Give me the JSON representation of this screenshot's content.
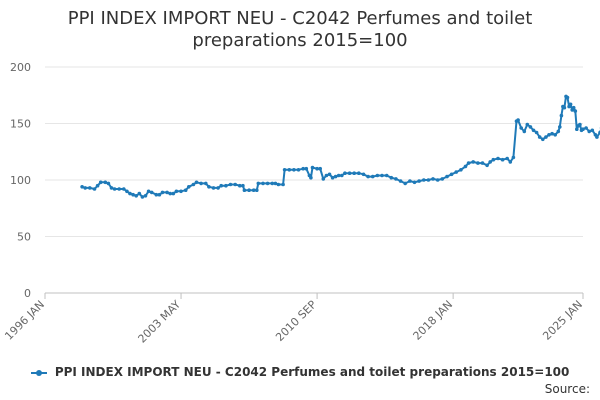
{
  "chart_data": {
    "type": "line",
    "title_lines": [
      "PPI INDEX IMPORT NEU - C2042 Perfumes and toilet",
      "preparations 2015=100"
    ],
    "xlabel": "",
    "ylabel": "",
    "ylim": [
      0,
      200
    ],
    "yticks": [
      0,
      50,
      100,
      150,
      200
    ],
    "xlim": [
      "1996-01",
      "2025-01"
    ],
    "xticks": [
      "1996 JAN",
      "2003 MAY",
      "2010 SEP",
      "2018 JAN",
      "2025 JAN"
    ],
    "grid": "horizontal",
    "legend_position": "bottom",
    "color": "#1f7ab8",
    "series": [
      {
        "name": "PPI INDEX IMPORT NEU - C2042 Perfumes and toilet preparations 2015=100",
        "points": [
          [
            "1998-01",
            94
          ],
          [
            "1998-03",
            93
          ],
          [
            "1998-06",
            93
          ],
          [
            "1998-09",
            92
          ],
          [
            "1998-11",
            95
          ],
          [
            "1999-01",
            98
          ],
          [
            "1999-04",
            98
          ],
          [
            "1999-06",
            97
          ],
          [
            "1999-08",
            93
          ],
          [
            "1999-10",
            92
          ],
          [
            "2000-01",
            92
          ],
          [
            "2000-04",
            92
          ],
          [
            "2000-06",
            90
          ],
          [
            "2000-08",
            88
          ],
          [
            "2000-10",
            87
          ],
          [
            "2000-12",
            86
          ],
          [
            "2001-02",
            88
          ],
          [
            "2001-04",
            85
          ],
          [
            "2001-06",
            86
          ],
          [
            "2001-08",
            90
          ],
          [
            "2001-10",
            89
          ],
          [
            "2002-01",
            87
          ],
          [
            "2002-03",
            87
          ],
          [
            "2002-05",
            89
          ],
          [
            "2002-08",
            89
          ],
          [
            "2002-10",
            88
          ],
          [
            "2002-12",
            88
          ],
          [
            "2003-02",
            90
          ],
          [
            "2003-05",
            90
          ],
          [
            "2003-08",
            91
          ],
          [
            "2003-10",
            94
          ],
          [
            "2004-01",
            96
          ],
          [
            "2004-03",
            98
          ],
          [
            "2004-06",
            97
          ],
          [
            "2004-09",
            97
          ],
          [
            "2004-11",
            94
          ],
          [
            "2005-02",
            93
          ],
          [
            "2005-05",
            93
          ],
          [
            "2005-07",
            95
          ],
          [
            "2005-10",
            95
          ],
          [
            "2006-01",
            96
          ],
          [
            "2006-04",
            96
          ],
          [
            "2006-07",
            95
          ],
          [
            "2006-09",
            95
          ],
          [
            "2006-10",
            91
          ],
          [
            "2007-01",
            91
          ],
          [
            "2007-04",
            91
          ],
          [
            "2007-06",
            91
          ],
          [
            "2007-07",
            97
          ],
          [
            "2007-10",
            97
          ],
          [
            "2008-01",
            97
          ],
          [
            "2008-04",
            97
          ],
          [
            "2008-06",
            97
          ],
          [
            "2008-08",
            96
          ],
          [
            "2008-11",
            96
          ],
          [
            "2008-12",
            109
          ],
          [
            "2009-03",
            109
          ],
          [
            "2009-06",
            109
          ],
          [
            "2009-09",
            109
          ],
          [
            "2009-12",
            110
          ],
          [
            "2010-02",
            110
          ],
          [
            "2010-04",
            104
          ],
          [
            "2010-05",
            102
          ],
          [
            "2010-06",
            111
          ],
          [
            "2010-09",
            110
          ],
          [
            "2010-11",
            110
          ],
          [
            "2011-01",
            101
          ],
          [
            "2011-03",
            104
          ],
          [
            "2011-05",
            105
          ],
          [
            "2011-07",
            102
          ],
          [
            "2011-09",
            103
          ],
          [
            "2011-11",
            104
          ],
          [
            "2012-01",
            104
          ],
          [
            "2012-03",
            106
          ],
          [
            "2012-06",
            106
          ],
          [
            "2012-09",
            106
          ],
          [
            "2012-12",
            106
          ],
          [
            "2013-03",
            105
          ],
          [
            "2013-06",
            103
          ],
          [
            "2013-09",
            103
          ],
          [
            "2013-12",
            104
          ],
          [
            "2014-03",
            104
          ],
          [
            "2014-06",
            104
          ],
          [
            "2014-09",
            102
          ],
          [
            "2014-12",
            101
          ],
          [
            "2015-03",
            99
          ],
          [
            "2015-06",
            97
          ],
          [
            "2015-09",
            99
          ],
          [
            "2015-12",
            98
          ],
          [
            "2016-03",
            99
          ],
          [
            "2016-06",
            100
          ],
          [
            "2016-09",
            100
          ],
          [
            "2016-12",
            101
          ],
          [
            "2017-03",
            100
          ],
          [
            "2017-06",
            101
          ],
          [
            "2017-09",
            103
          ],
          [
            "2017-12",
            105
          ],
          [
            "2018-03",
            107
          ],
          [
            "2018-06",
            109
          ],
          [
            "2018-09",
            112
          ],
          [
            "2018-11",
            115
          ],
          [
            "2019-02",
            116
          ],
          [
            "2019-05",
            115
          ],
          [
            "2019-08",
            115
          ],
          [
            "2019-11",
            113
          ],
          [
            "2020-01",
            116
          ],
          [
            "2020-03",
            118
          ],
          [
            "2020-06",
            119
          ],
          [
            "2020-09",
            118
          ],
          [
            "2020-12",
            119
          ],
          [
            "2021-02",
            116
          ],
          [
            "2021-04",
            120
          ],
          [
            "2021-06",
            152
          ],
          [
            "2021-07",
            153
          ],
          [
            "2021-09",
            146
          ],
          [
            "2021-11",
            143
          ],
          [
            "2022-01",
            149
          ],
          [
            "2022-03",
            147
          ],
          [
            "2022-05",
            144
          ],
          [
            "2022-07",
            142
          ],
          [
            "2022-09",
            138
          ],
          [
            "2022-11",
            136
          ],
          [
            "2023-01",
            138
          ],
          [
            "2023-03",
            140
          ],
          [
            "2023-05",
            141
          ],
          [
            "2023-07",
            140
          ],
          [
            "2023-09",
            143
          ],
          [
            "2023-10",
            147
          ],
          [
            "2023-11",
            157
          ],
          [
            "2023-12",
            165
          ],
          [
            "2024-01",
            164
          ],
          [
            "2024-02",
            174
          ],
          [
            "2024-03",
            173
          ],
          [
            "2024-04",
            165
          ],
          [
            "2024-05",
            167
          ],
          [
            "2024-06",
            162
          ],
          [
            "2024-07",
            164
          ],
          [
            "2024-08",
            161
          ],
          [
            "2024-09",
            145
          ],
          [
            "2024-10",
            148
          ],
          [
            "2024-11",
            149
          ],
          [
            "2024-12",
            144
          ],
          [
            "2025-01",
            145
          ],
          [
            "2025-03",
            146
          ],
          [
            "2025-05",
            143
          ],
          [
            "2025-07",
            144
          ],
          [
            "2025-09",
            140
          ],
          [
            "2025-10",
            138
          ],
          [
            "2025-12",
            142
          ],
          [
            "2026-01",
            146
          ]
        ]
      }
    ]
  },
  "source_label": "Source:"
}
